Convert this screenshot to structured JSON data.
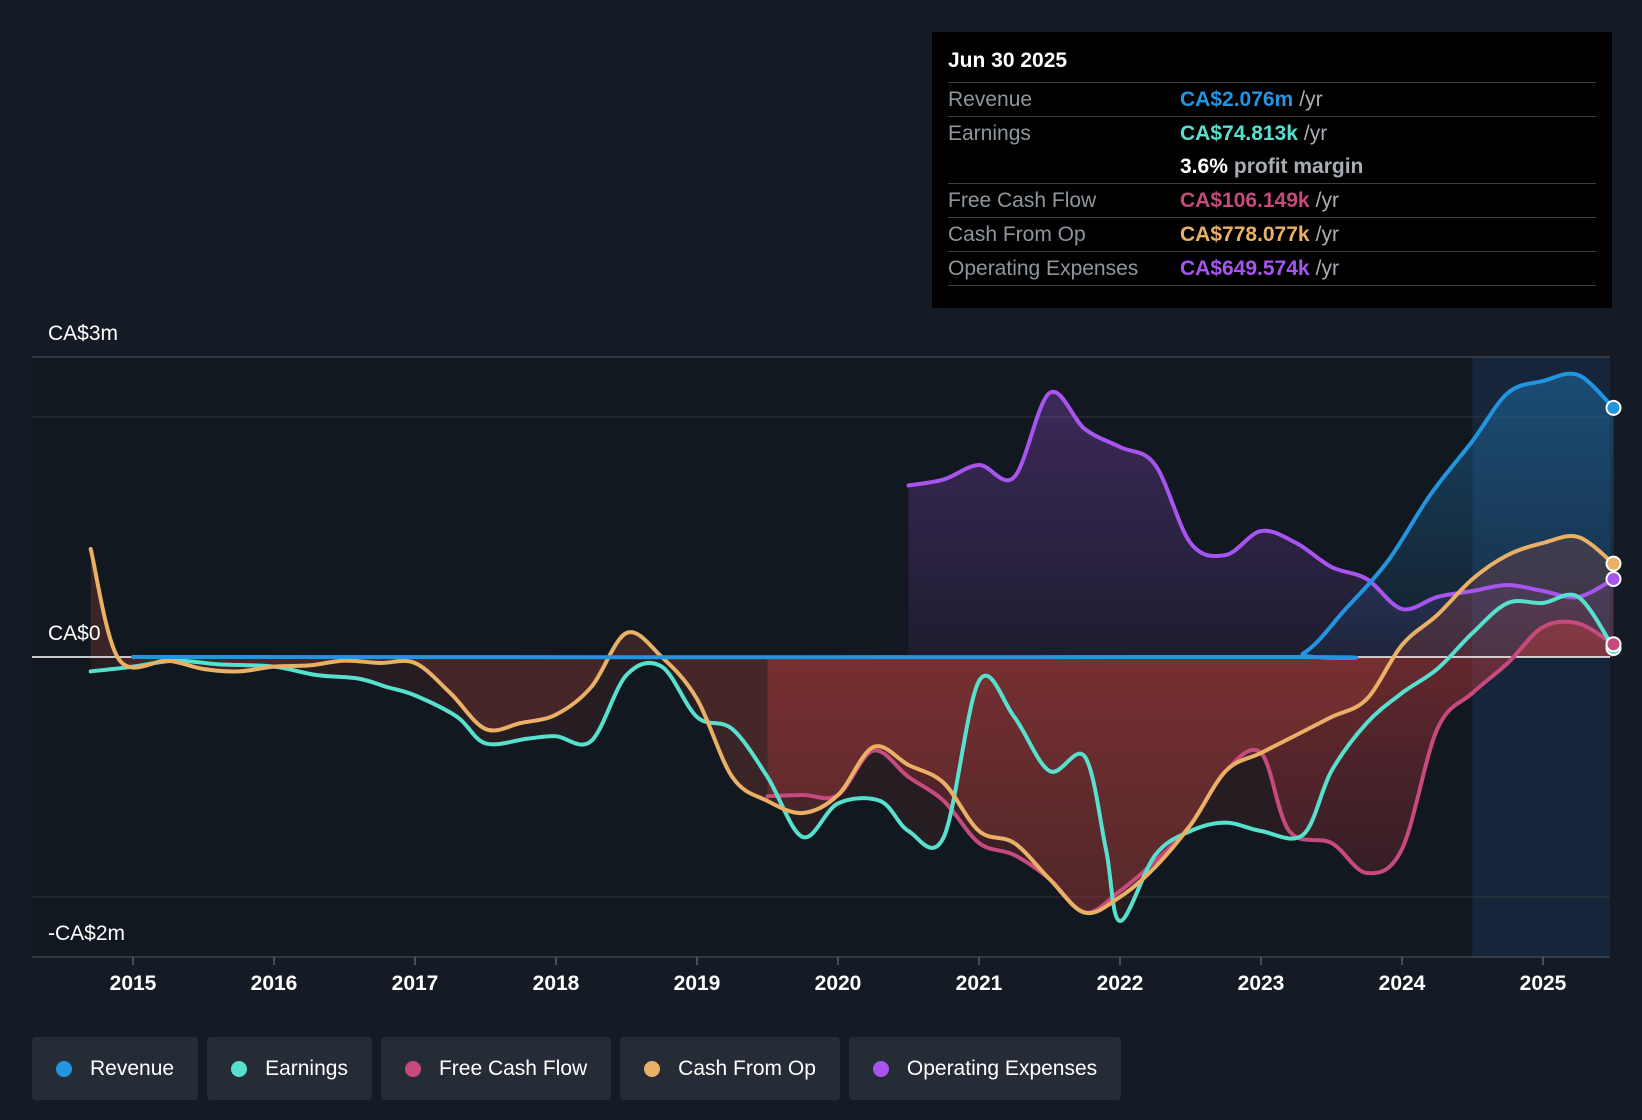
{
  "chart_data": {
    "type": "line",
    "title": "",
    "y_axis": {
      "top_label": "CA$3m",
      "zero_label": "CA$0",
      "bottom_label": "-CA$2m",
      "ylim": [
        -2.5,
        3.0
      ]
    },
    "x_ticks": [
      "2015",
      "2016",
      "2017",
      "2018",
      "2019",
      "2020",
      "2021",
      "2022",
      "2023",
      "2024",
      "2025"
    ],
    "xlim": [
      2014.3,
      2025.5
    ],
    "forecast_start": 2024.5,
    "series": [
      {
        "name": "Revenue",
        "color": "#2394e0",
        "points": [
          [
            2015.0,
            0.0
          ],
          [
            2023.0,
            0.0
          ],
          [
            2023.3,
            0.03
          ],
          [
            2023.6,
            0.4
          ],
          [
            2023.9,
            0.8
          ],
          [
            2024.2,
            1.35
          ],
          [
            2024.5,
            1.8
          ],
          [
            2024.75,
            2.2
          ],
          [
            2025.0,
            2.3
          ],
          [
            2025.25,
            2.35
          ],
          [
            2025.5,
            2.076
          ]
        ]
      },
      {
        "name": "Earnings",
        "color": "#58e0cf",
        "points": [
          [
            2014.7,
            -0.12
          ],
          [
            2015.0,
            -0.08
          ],
          [
            2015.3,
            -0.03
          ],
          [
            2015.6,
            -0.06
          ],
          [
            2016.0,
            -0.08
          ],
          [
            2016.3,
            -0.15
          ],
          [
            2016.6,
            -0.18
          ],
          [
            2016.8,
            -0.25
          ],
          [
            2017.0,
            -0.32
          ],
          [
            2017.3,
            -0.5
          ],
          [
            2017.5,
            -0.72
          ],
          [
            2017.8,
            -0.68
          ],
          [
            2018.0,
            -0.66
          ],
          [
            2018.25,
            -0.7
          ],
          [
            2018.5,
            -0.15
          ],
          [
            2018.75,
            -0.08
          ],
          [
            2019.0,
            -0.5
          ],
          [
            2019.25,
            -0.6
          ],
          [
            2019.5,
            -1.0
          ],
          [
            2019.75,
            -1.5
          ],
          [
            2020.0,
            -1.22
          ],
          [
            2020.3,
            -1.2
          ],
          [
            2020.5,
            -1.45
          ],
          [
            2020.75,
            -1.5
          ],
          [
            2021.0,
            -0.2
          ],
          [
            2021.25,
            -0.5
          ],
          [
            2021.5,
            -0.95
          ],
          [
            2021.75,
            -0.83
          ],
          [
            2021.9,
            -1.6
          ],
          [
            2022.0,
            -2.2
          ],
          [
            2022.25,
            -1.65
          ],
          [
            2022.5,
            -1.45
          ],
          [
            2022.75,
            -1.38
          ],
          [
            2023.0,
            -1.45
          ],
          [
            2023.3,
            -1.48
          ],
          [
            2023.5,
            -0.95
          ],
          [
            2023.75,
            -0.55
          ],
          [
            2024.0,
            -0.3
          ],
          [
            2024.25,
            -0.1
          ],
          [
            2024.5,
            0.2
          ],
          [
            2024.75,
            0.45
          ],
          [
            2025.0,
            0.45
          ],
          [
            2025.25,
            0.5
          ],
          [
            2025.5,
            0.075
          ]
        ]
      },
      {
        "name": "Free Cash Flow",
        "color": "#c64a7c",
        "points": [
          [
            2019.5,
            -1.16
          ],
          [
            2019.75,
            -1.15
          ],
          [
            2020.0,
            -1.15
          ],
          [
            2020.25,
            -0.78
          ],
          [
            2020.5,
            -1.0
          ],
          [
            2020.75,
            -1.2
          ],
          [
            2021.0,
            -1.55
          ],
          [
            2021.25,
            -1.65
          ],
          [
            2021.5,
            -1.85
          ],
          [
            2021.75,
            -2.13
          ],
          [
            2022.0,
            -1.95
          ],
          [
            2022.25,
            -1.7
          ],
          [
            2022.5,
            -1.4
          ],
          [
            2022.75,
            -0.95
          ],
          [
            2023.0,
            -0.8
          ],
          [
            2023.2,
            -1.45
          ],
          [
            2023.5,
            -1.55
          ],
          [
            2023.75,
            -1.8
          ],
          [
            2024.0,
            -1.6
          ],
          [
            2024.25,
            -0.6
          ],
          [
            2024.5,
            -0.3
          ],
          [
            2024.75,
            -0.05
          ],
          [
            2025.0,
            0.25
          ],
          [
            2025.25,
            0.28
          ],
          [
            2025.5,
            0.106
          ]
        ]
      },
      {
        "name": "Cash From Op",
        "color": "#e9b066",
        "points": [
          [
            2014.7,
            0.9
          ],
          [
            2014.9,
            -0.02
          ],
          [
            2015.25,
            -0.03
          ],
          [
            2015.5,
            -0.1
          ],
          [
            2015.75,
            -0.12
          ],
          [
            2016.0,
            -0.08
          ],
          [
            2016.25,
            -0.07
          ],
          [
            2016.5,
            -0.03
          ],
          [
            2016.75,
            -0.05
          ],
          [
            2017.0,
            -0.05
          ],
          [
            2017.25,
            -0.3
          ],
          [
            2017.5,
            -0.6
          ],
          [
            2017.75,
            -0.55
          ],
          [
            2018.0,
            -0.48
          ],
          [
            2018.25,
            -0.25
          ],
          [
            2018.5,
            0.2
          ],
          [
            2018.75,
            0.0
          ],
          [
            2019.0,
            -0.35
          ],
          [
            2019.25,
            -1.0
          ],
          [
            2019.5,
            -1.2
          ],
          [
            2019.75,
            -1.3
          ],
          [
            2020.0,
            -1.15
          ],
          [
            2020.25,
            -0.75
          ],
          [
            2020.5,
            -0.9
          ],
          [
            2020.75,
            -1.05
          ],
          [
            2021.0,
            -1.45
          ],
          [
            2021.25,
            -1.55
          ],
          [
            2021.5,
            -1.85
          ],
          [
            2021.75,
            -2.13
          ],
          [
            2022.0,
            -2.0
          ],
          [
            2022.25,
            -1.75
          ],
          [
            2022.5,
            -1.4
          ],
          [
            2022.75,
            -0.95
          ],
          [
            2023.0,
            -0.8
          ],
          [
            2023.25,
            -0.65
          ],
          [
            2023.5,
            -0.5
          ],
          [
            2023.75,
            -0.35
          ],
          [
            2024.0,
            0.1
          ],
          [
            2024.25,
            0.35
          ],
          [
            2024.5,
            0.65
          ],
          [
            2024.75,
            0.85
          ],
          [
            2025.0,
            0.95
          ],
          [
            2025.25,
            1.0
          ],
          [
            2025.5,
            0.778
          ]
        ]
      },
      {
        "name": "Operating Expenses",
        "color": "#a855f0",
        "points": [
          [
            2020.5,
            1.43
          ],
          [
            2020.75,
            1.48
          ],
          [
            2021.0,
            1.6
          ],
          [
            2021.25,
            1.5
          ],
          [
            2021.5,
            2.2
          ],
          [
            2021.75,
            1.9
          ],
          [
            2022.0,
            1.75
          ],
          [
            2022.25,
            1.6
          ],
          [
            2022.5,
            0.95
          ],
          [
            2022.75,
            0.85
          ],
          [
            2023.0,
            1.05
          ],
          [
            2023.25,
            0.95
          ],
          [
            2023.5,
            0.75
          ],
          [
            2023.75,
            0.65
          ],
          [
            2024.0,
            0.4
          ],
          [
            2024.25,
            0.5
          ],
          [
            2024.5,
            0.55
          ],
          [
            2024.75,
            0.6
          ],
          [
            2025.0,
            0.55
          ],
          [
            2025.25,
            0.5
          ],
          [
            2025.5,
            0.65
          ]
        ]
      }
    ]
  },
  "tooltip": {
    "date": "Jun 30 2025",
    "rows": [
      {
        "label": "Revenue",
        "value": "CA$2.076m",
        "unit": "/yr",
        "color": "#2394e0"
      },
      {
        "label": "Earnings",
        "value": "CA$74.813k",
        "unit": "/yr",
        "color": "#58e0cf"
      },
      {
        "label": "",
        "value": "3.6%",
        "unit": "profit margin",
        "color": "#ffffff"
      },
      {
        "label": "Free Cash Flow",
        "value": "CA$106.149k",
        "unit": "/yr",
        "color": "#c64a7c"
      },
      {
        "label": "Cash From Op",
        "value": "CA$778.077k",
        "unit": "/yr",
        "color": "#e9b066"
      },
      {
        "label": "Operating Expenses",
        "value": "CA$649.574k",
        "unit": "/yr",
        "color": "#a855f0"
      }
    ]
  },
  "legend": [
    {
      "label": "Revenue",
      "color": "#2394e0"
    },
    {
      "label": "Earnings",
      "color": "#58e0cf"
    },
    {
      "label": "Free Cash Flow",
      "color": "#c64a7c"
    },
    {
      "label": "Cash From Op",
      "color": "#e9b066"
    },
    {
      "label": "Operating Expenses",
      "color": "#a855f0"
    }
  ]
}
